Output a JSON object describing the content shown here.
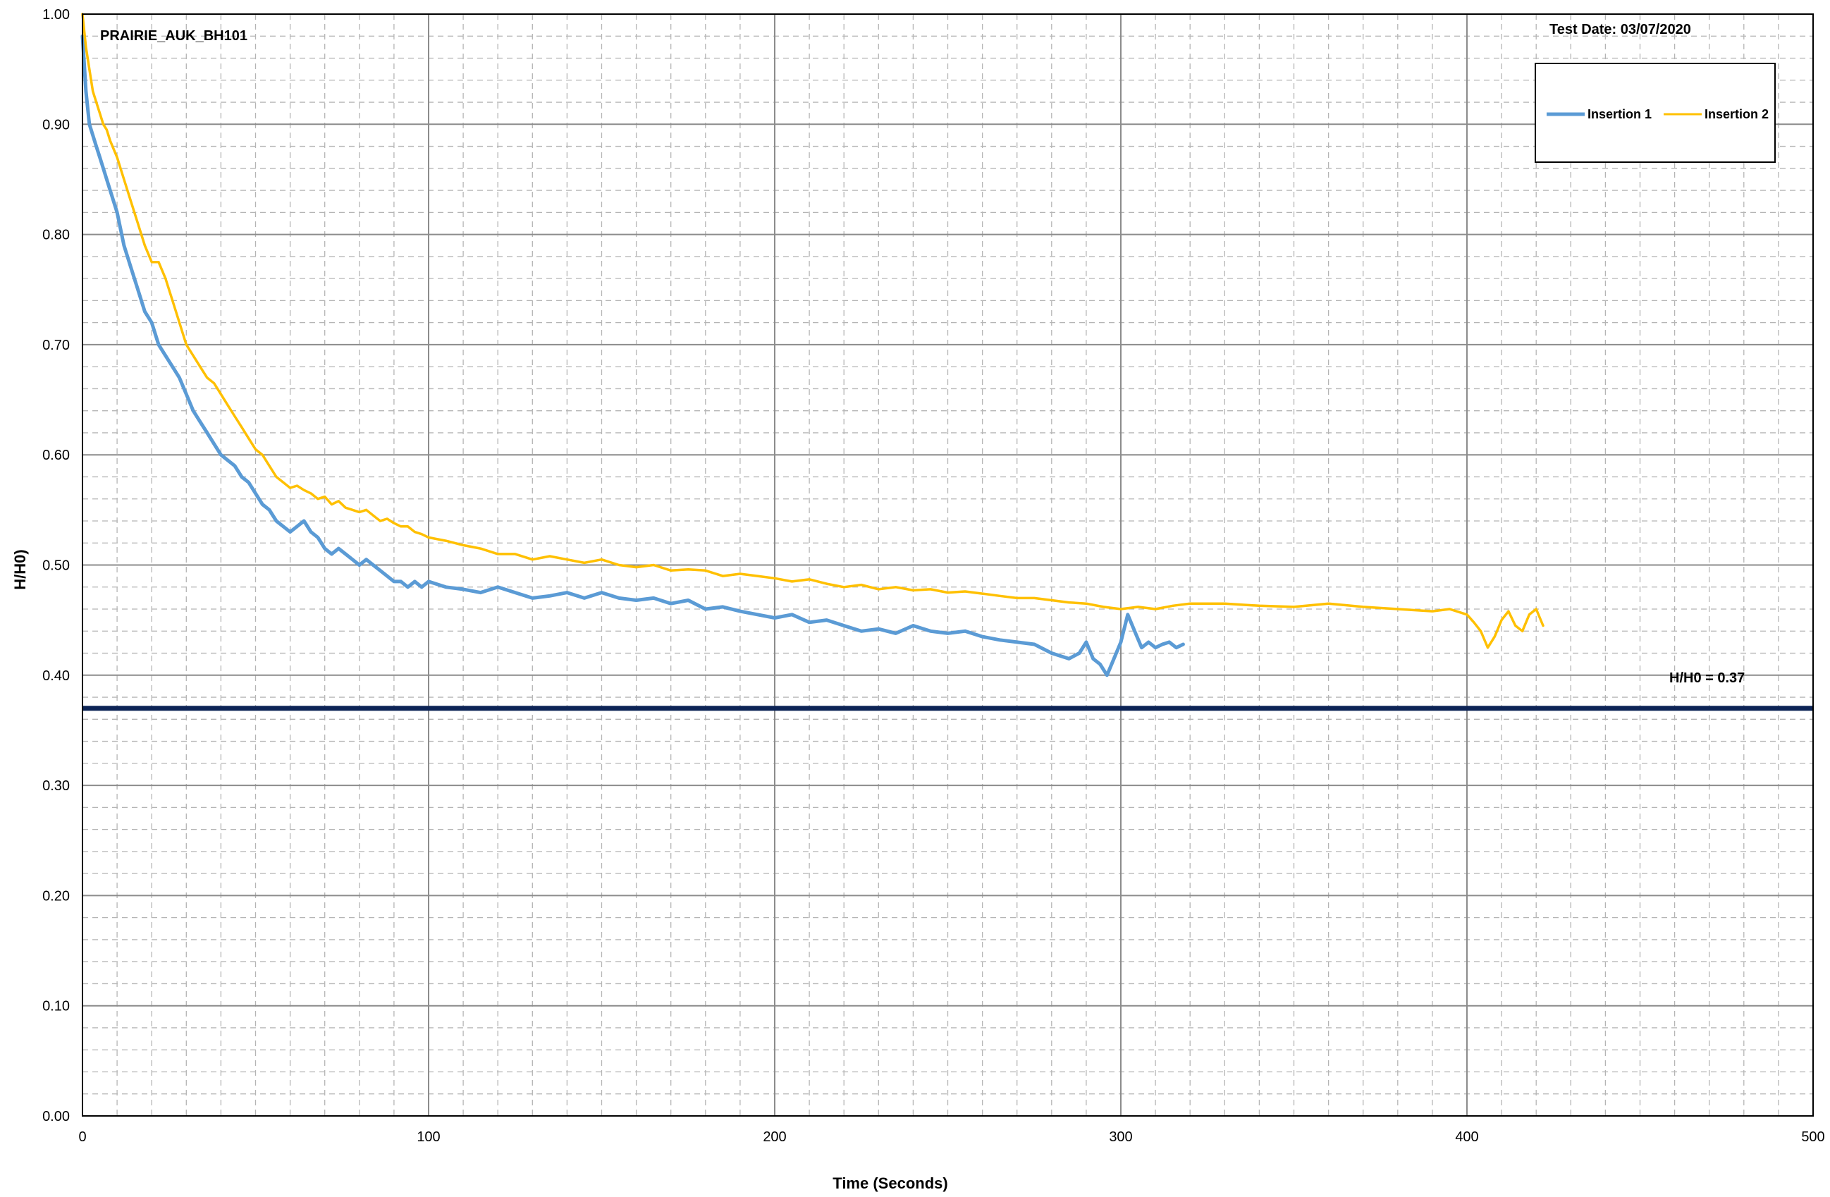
{
  "chart_data": {
    "type": "line",
    "title": "PRAIRIE_AUK_BH101",
    "test_date": "Test Date: 03/07/2020",
    "xlabel": "Time (Seconds)",
    "ylabel": "H/H0)",
    "xlim": [
      0,
      500
    ],
    "ylim": [
      0,
      1.0
    ],
    "x_major_ticks": [
      0,
      100,
      200,
      300,
      400,
      500
    ],
    "x_major_labels": [
      "0",
      "100",
      "200",
      "300",
      "400",
      "500"
    ],
    "x_minor_step": 10,
    "y_major_ticks": [
      0,
      0.1,
      0.2,
      0.3,
      0.4,
      0.5,
      0.6,
      0.7,
      0.8,
      0.9,
      1.0
    ],
    "y_major_labels": [
      "0.00",
      "0.10",
      "0.20",
      "0.30",
      "0.40",
      "0.50",
      "0.60",
      "0.70",
      "0.80",
      "0.90",
      "1.00"
    ],
    "y_minor_step": 0.02,
    "grid": true,
    "legend_position": "top-right",
    "reference_line": {
      "y": 0.37,
      "label": "H/H0 = 0.37",
      "color": "#0d2456"
    },
    "series": [
      {
        "name": "Insertion 1",
        "color": "#5b9bd5",
        "x": [
          0,
          1,
          2,
          3,
          4,
          5,
          6,
          7,
          8,
          10,
          12,
          14,
          16,
          18,
          20,
          22,
          24,
          26,
          28,
          30,
          32,
          34,
          36,
          38,
          40,
          42,
          44,
          46,
          48,
          50,
          52,
          54,
          56,
          58,
          60,
          62,
          64,
          66,
          68,
          70,
          72,
          74,
          76,
          78,
          80,
          82,
          84,
          86,
          88,
          90,
          92,
          94,
          96,
          98,
          100,
          105,
          110,
          115,
          120,
          125,
          130,
          135,
          140,
          145,
          150,
          155,
          160,
          165,
          170,
          175,
          180,
          185,
          190,
          195,
          200,
          205,
          210,
          215,
          220,
          225,
          230,
          235,
          240,
          245,
          250,
          255,
          260,
          265,
          270,
          275,
          280,
          285,
          288,
          290,
          292,
          294,
          296,
          298,
          300,
          302,
          304,
          306,
          308,
          310,
          312,
          314,
          316,
          318
        ],
        "values": [
          0.98,
          0.93,
          0.9,
          0.89,
          0.88,
          0.87,
          0.86,
          0.85,
          0.84,
          0.82,
          0.79,
          0.77,
          0.75,
          0.73,
          0.72,
          0.7,
          0.69,
          0.68,
          0.67,
          0.655,
          0.64,
          0.63,
          0.62,
          0.61,
          0.6,
          0.595,
          0.59,
          0.58,
          0.575,
          0.565,
          0.555,
          0.55,
          0.54,
          0.535,
          0.53,
          0.535,
          0.54,
          0.53,
          0.525,
          0.515,
          0.51,
          0.515,
          0.51,
          0.505,
          0.5,
          0.505,
          0.5,
          0.495,
          0.49,
          0.485,
          0.485,
          0.48,
          0.485,
          0.48,
          0.485,
          0.48,
          0.478,
          0.475,
          0.48,
          0.475,
          0.47,
          0.472,
          0.475,
          0.47,
          0.475,
          0.47,
          0.468,
          0.47,
          0.465,
          0.468,
          0.46,
          0.462,
          0.458,
          0.455,
          0.452,
          0.455,
          0.448,
          0.45,
          0.445,
          0.44,
          0.442,
          0.438,
          0.445,
          0.44,
          0.438,
          0.44,
          0.435,
          0.432,
          0.43,
          0.428,
          0.42,
          0.415,
          0.42,
          0.43,
          0.415,
          0.41,
          0.4,
          0.415,
          0.43,
          0.455,
          0.44,
          0.425,
          0.43,
          0.425,
          0.428,
          0.43,
          0.425,
          0.428
        ]
      },
      {
        "name": "Insertion 2",
        "color": "#ffc000",
        "x": [
          0,
          1,
          2,
          3,
          4,
          5,
          6,
          7,
          8,
          10,
          12,
          14,
          16,
          18,
          20,
          22,
          24,
          26,
          28,
          30,
          32,
          34,
          36,
          38,
          40,
          42,
          44,
          46,
          48,
          50,
          52,
          54,
          56,
          58,
          60,
          62,
          64,
          66,
          68,
          70,
          72,
          74,
          76,
          78,
          80,
          82,
          84,
          86,
          88,
          90,
          92,
          94,
          96,
          98,
          100,
          105,
          110,
          115,
          120,
          125,
          130,
          135,
          140,
          145,
          150,
          155,
          160,
          165,
          170,
          175,
          180,
          185,
          190,
          195,
          200,
          205,
          210,
          215,
          220,
          225,
          230,
          235,
          240,
          245,
          250,
          255,
          260,
          265,
          270,
          275,
          280,
          285,
          290,
          295,
          300,
          305,
          310,
          315,
          320,
          330,
          340,
          350,
          360,
          370,
          380,
          390,
          395,
          400,
          402,
          404,
          406,
          408,
          410,
          412,
          414,
          416,
          418,
          420,
          422
        ],
        "values": [
          1.0,
          0.97,
          0.95,
          0.93,
          0.92,
          0.91,
          0.9,
          0.895,
          0.885,
          0.87,
          0.85,
          0.83,
          0.81,
          0.79,
          0.775,
          0.775,
          0.76,
          0.74,
          0.72,
          0.7,
          0.69,
          0.68,
          0.67,
          0.665,
          0.655,
          0.645,
          0.635,
          0.625,
          0.615,
          0.605,
          0.6,
          0.59,
          0.58,
          0.575,
          0.57,
          0.572,
          0.568,
          0.565,
          0.56,
          0.562,
          0.555,
          0.558,
          0.552,
          0.55,
          0.548,
          0.55,
          0.545,
          0.54,
          0.542,
          0.538,
          0.535,
          0.535,
          0.53,
          0.528,
          0.525,
          0.522,
          0.518,
          0.515,
          0.51,
          0.51,
          0.505,
          0.508,
          0.505,
          0.502,
          0.505,
          0.5,
          0.498,
          0.5,
          0.495,
          0.496,
          0.495,
          0.49,
          0.492,
          0.49,
          0.488,
          0.485,
          0.487,
          0.483,
          0.48,
          0.482,
          0.478,
          0.48,
          0.477,
          0.478,
          0.475,
          0.476,
          0.474,
          0.472,
          0.47,
          0.47,
          0.468,
          0.466,
          0.465,
          0.462,
          0.46,
          0.462,
          0.46,
          0.463,
          0.465,
          0.465,
          0.463,
          0.462,
          0.465,
          0.462,
          0.46,
          0.458,
          0.46,
          0.455,
          0.448,
          0.44,
          0.425,
          0.435,
          0.45,
          0.458,
          0.445,
          0.44,
          0.455,
          0.46,
          0.445
        ]
      }
    ]
  }
}
